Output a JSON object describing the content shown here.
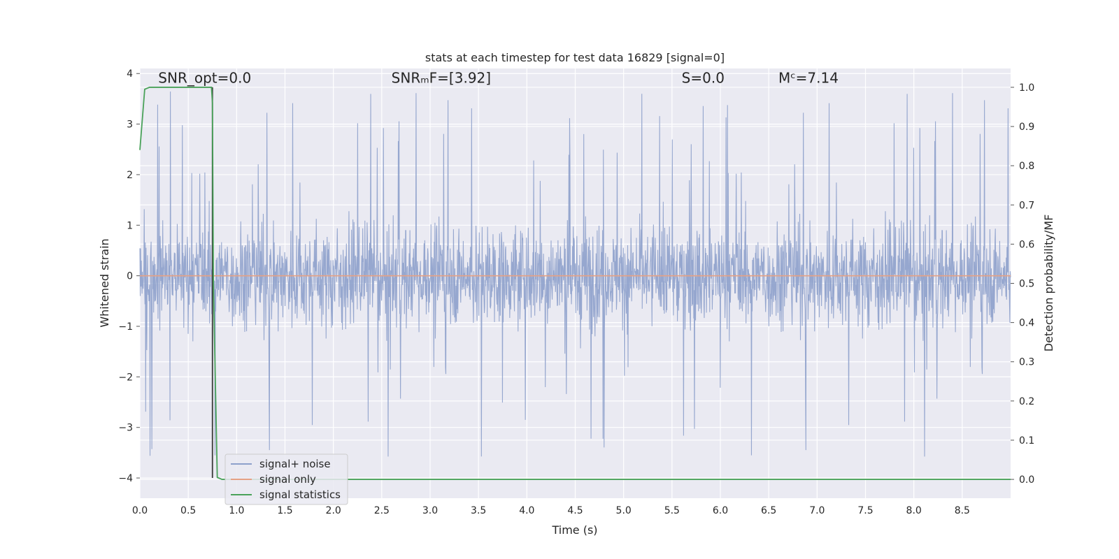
{
  "chart_data": {
    "type": "line",
    "title": "stats at each timestep for test data 16829 [signal=0]",
    "xlabel": "Time (s)",
    "ylabel": "Whitened strain",
    "y2label": "Detection probability/MF",
    "xlim": [
      0.0,
      9.0
    ],
    "ylim": [
      -4.4,
      4.1
    ],
    "y2lim": [
      -0.048,
      1.048
    ],
    "x_ticks": [
      "0.0",
      "0.5",
      "1.0",
      "1.5",
      "2.0",
      "2.5",
      "3.0",
      "3.5",
      "4.0",
      "4.5",
      "5.0",
      "5.5",
      "6.0",
      "6.5",
      "7.0",
      "7.5",
      "8.0",
      "8.5"
    ],
    "y_ticks": [
      "4",
      "3",
      "2",
      "1",
      "0",
      "−1",
      "−2",
      "−3",
      "−4"
    ],
    "y2_ticks": [
      "1.0",
      "0.9",
      "0.8",
      "0.7",
      "0.6",
      "0.5",
      "0.4",
      "0.3",
      "0.2",
      "0.1",
      "0.0"
    ],
    "grid": true,
    "legend_position": "lower-left",
    "annotations": [
      {
        "id": "snr-opt",
        "text": "SNR_opt=0.0",
        "x": 0.19,
        "y": 3.9
      },
      {
        "id": "snr-mf",
        "text": "SNRₘF=[3.92]",
        "x": 2.6,
        "y": 3.9
      },
      {
        "id": "s-stat",
        "text": "S=0.0",
        "x": 5.6,
        "y": 3.9
      },
      {
        "id": "mc",
        "text": "Mᶜ=7.14",
        "x": 6.6,
        "y": 3.9
      }
    ],
    "series": [
      {
        "name": "signal+ noise",
        "axis": "left",
        "color": "#8da0cb",
        "description": "whitened noise, approx ±1.5 band with spikes up to about ±3.7",
        "noise_amplitude": 1.5,
        "x_range": [
          0.0,
          9.0
        ]
      },
      {
        "name": "signal only",
        "axis": "left",
        "color": "#e5a184",
        "x": [
          0.0,
          9.0
        ],
        "values": [
          0.0,
          0.0
        ]
      },
      {
        "name": "signal statistics",
        "axis": "right",
        "color": "#4aa25a",
        "x": [
          0.0,
          0.05,
          0.1,
          0.2,
          0.3,
          0.4,
          0.5,
          0.6,
          0.7,
          0.74,
          0.75,
          0.76,
          0.8,
          0.85,
          1.0,
          2.0,
          3.0,
          4.0,
          5.0,
          6.0,
          7.0,
          8.0,
          9.0
        ],
        "values": [
          0.84,
          0.995,
          1.0,
          1.0,
          1.0,
          1.0,
          1.0,
          1.0,
          1.0,
          1.0,
          0.96,
          0.5,
          0.005,
          0.0,
          0.0,
          0.0,
          0.0,
          0.0,
          0.0,
          0.0,
          0.0,
          0.0,
          0.0
        ]
      }
    ],
    "vertical_line": {
      "x": 0.75,
      "color": "#3a3a3a"
    }
  }
}
